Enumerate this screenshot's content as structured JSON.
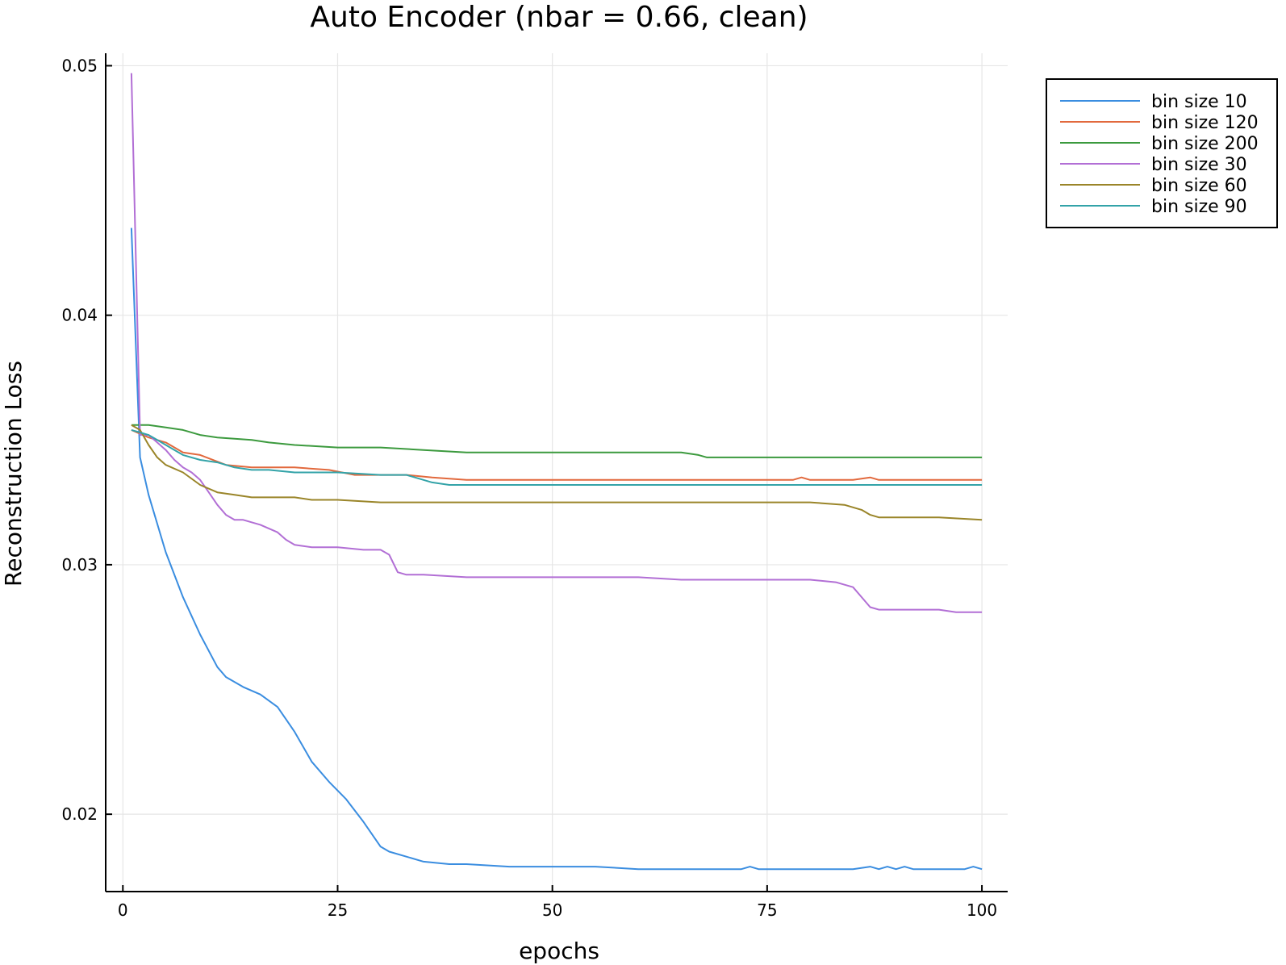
{
  "chart_data": {
    "type": "line",
    "title": "Auto Encoder (nbar = 0.66, clean)",
    "xlabel": "epochs",
    "ylabel": "Reconstruction Loss",
    "xlim": [
      -2,
      103
    ],
    "ylim": [
      0.0169,
      0.0505
    ],
    "xticks": [
      0,
      25,
      50,
      75,
      100
    ],
    "xtick_labels": [
      "0",
      "25",
      "50",
      "75",
      "100"
    ],
    "yticks": [
      0.02,
      0.03,
      0.04,
      0.05
    ],
    "ytick_labels": [
      "0.02",
      "0.03",
      "0.04",
      "0.05"
    ],
    "grid": true,
    "legend_position": "outer top-right",
    "series": [
      {
        "name": "bin size 10",
        "color": "#3a8de0",
        "points": [
          [
            1,
            0.0435
          ],
          [
            2,
            0.0343
          ],
          [
            3,
            0.0328
          ],
          [
            5,
            0.0305
          ],
          [
            7,
            0.0287
          ],
          [
            9,
            0.0272
          ],
          [
            11,
            0.0259
          ],
          [
            12,
            0.0255
          ],
          [
            14,
            0.0251
          ],
          [
            16,
            0.0248
          ],
          [
            18,
            0.0243
          ],
          [
            19,
            0.0238
          ],
          [
            20,
            0.0233
          ],
          [
            22,
            0.0221
          ],
          [
            24,
            0.0213
          ],
          [
            26,
            0.0206
          ],
          [
            28,
            0.0197
          ],
          [
            29,
            0.0192
          ],
          [
            30,
            0.0187
          ],
          [
            31,
            0.0185
          ],
          [
            33,
            0.0183
          ],
          [
            35,
            0.0181
          ],
          [
            38,
            0.018
          ],
          [
            40,
            0.018
          ],
          [
            45,
            0.0179
          ],
          [
            50,
            0.0179
          ],
          [
            55,
            0.0179
          ],
          [
            60,
            0.0178
          ],
          [
            65,
            0.0178
          ],
          [
            70,
            0.0178
          ],
          [
            72,
            0.0178
          ],
          [
            73,
            0.0179
          ],
          [
            74,
            0.0178
          ],
          [
            80,
            0.0178
          ],
          [
            85,
            0.0178
          ],
          [
            87,
            0.0179
          ],
          [
            88,
            0.0178
          ],
          [
            89,
            0.0179
          ],
          [
            90,
            0.0178
          ],
          [
            91,
            0.0179
          ],
          [
            92,
            0.0178
          ],
          [
            95,
            0.0178
          ],
          [
            98,
            0.0178
          ],
          [
            99,
            0.0179
          ],
          [
            100,
            0.0178
          ]
        ]
      },
      {
        "name": "bin size 120",
        "color": "#e2693d",
        "points": [
          [
            1,
            0.0354
          ],
          [
            3,
            0.0351
          ],
          [
            5,
            0.0349
          ],
          [
            7,
            0.0345
          ],
          [
            9,
            0.0344
          ],
          [
            12,
            0.034
          ],
          [
            15,
            0.0339
          ],
          [
            20,
            0.0339
          ],
          [
            24,
            0.0338
          ],
          [
            27,
            0.0336
          ],
          [
            30,
            0.0336
          ],
          [
            33,
            0.0336
          ],
          [
            36,
            0.0335
          ],
          [
            40,
            0.0334
          ],
          [
            45,
            0.0334
          ],
          [
            50,
            0.0334
          ],
          [
            55,
            0.0334
          ],
          [
            60,
            0.0334
          ],
          [
            65,
            0.0334
          ],
          [
            70,
            0.0334
          ],
          [
            75,
            0.0334
          ],
          [
            78,
            0.0334
          ],
          [
            79,
            0.0335
          ],
          [
            80,
            0.0334
          ],
          [
            85,
            0.0334
          ],
          [
            87,
            0.0335
          ],
          [
            88,
            0.0334
          ],
          [
            95,
            0.0334
          ],
          [
            100,
            0.0334
          ]
        ]
      },
      {
        "name": "bin size 200",
        "color": "#3c9a3e",
        "points": [
          [
            1,
            0.0356
          ],
          [
            3,
            0.0356
          ],
          [
            5,
            0.0355
          ],
          [
            7,
            0.0354
          ],
          [
            9,
            0.0352
          ],
          [
            11,
            0.0351
          ],
          [
            15,
            0.035
          ],
          [
            17,
            0.0349
          ],
          [
            20,
            0.0348
          ],
          [
            25,
            0.0347
          ],
          [
            30,
            0.0347
          ],
          [
            35,
            0.0346
          ],
          [
            40,
            0.0345
          ],
          [
            45,
            0.0345
          ],
          [
            50,
            0.0345
          ],
          [
            55,
            0.0345
          ],
          [
            60,
            0.0345
          ],
          [
            65,
            0.0345
          ],
          [
            67,
            0.0344
          ],
          [
            68,
            0.0343
          ],
          [
            70,
            0.0343
          ],
          [
            75,
            0.0343
          ],
          [
            80,
            0.0343
          ],
          [
            85,
            0.0343
          ],
          [
            90,
            0.0343
          ],
          [
            95,
            0.0343
          ],
          [
            100,
            0.0343
          ]
        ]
      },
      {
        "name": "bin size 30",
        "color": "#b26fd5",
        "points": [
          [
            1,
            0.0497
          ],
          [
            2,
            0.0352
          ],
          [
            3,
            0.0352
          ],
          [
            4,
            0.0349
          ],
          [
            5,
            0.0346
          ],
          [
            6,
            0.0342
          ],
          [
            7,
            0.0339
          ],
          [
            8,
            0.0337
          ],
          [
            9,
            0.0334
          ],
          [
            10,
            0.0329
          ],
          [
            11,
            0.0324
          ],
          [
            12,
            0.032
          ],
          [
            13,
            0.0318
          ],
          [
            14,
            0.0318
          ],
          [
            16,
            0.0316
          ],
          [
            18,
            0.0313
          ],
          [
            19,
            0.031
          ],
          [
            20,
            0.0308
          ],
          [
            22,
            0.0307
          ],
          [
            25,
            0.0307
          ],
          [
            28,
            0.0306
          ],
          [
            30,
            0.0306
          ],
          [
            31,
            0.0304
          ],
          [
            32,
            0.0297
          ],
          [
            33,
            0.0296
          ],
          [
            35,
            0.0296
          ],
          [
            40,
            0.0295
          ],
          [
            45,
            0.0295
          ],
          [
            50,
            0.0295
          ],
          [
            53,
            0.0295
          ],
          [
            54,
            0.0295
          ],
          [
            55,
            0.0295
          ],
          [
            60,
            0.0295
          ],
          [
            65,
            0.0294
          ],
          [
            70,
            0.0294
          ],
          [
            75,
            0.0294
          ],
          [
            80,
            0.0294
          ],
          [
            83,
            0.0293
          ],
          [
            85,
            0.0291
          ],
          [
            86,
            0.0287
          ],
          [
            87,
            0.0283
          ],
          [
            88,
            0.0282
          ],
          [
            90,
            0.0282
          ],
          [
            92,
            0.0282
          ],
          [
            95,
            0.0282
          ],
          [
            97,
            0.0281
          ],
          [
            98,
            0.0281
          ],
          [
            100,
            0.0281
          ]
        ]
      },
      {
        "name": "bin size 60",
        "color": "#9a8529",
        "points": [
          [
            1,
            0.0356
          ],
          [
            2,
            0.0354
          ],
          [
            3,
            0.0348
          ],
          [
            4,
            0.0343
          ],
          [
            5,
            0.034
          ],
          [
            7,
            0.0337
          ],
          [
            9,
            0.0332
          ],
          [
            11,
            0.0329
          ],
          [
            13,
            0.0328
          ],
          [
            15,
            0.0327
          ],
          [
            18,
            0.0327
          ],
          [
            20,
            0.0327
          ],
          [
            22,
            0.0326
          ],
          [
            25,
            0.0326
          ],
          [
            30,
            0.0325
          ],
          [
            35,
            0.0325
          ],
          [
            40,
            0.0325
          ],
          [
            45,
            0.0325
          ],
          [
            50,
            0.0325
          ],
          [
            55,
            0.0325
          ],
          [
            60,
            0.0325
          ],
          [
            65,
            0.0325
          ],
          [
            70,
            0.0325
          ],
          [
            75,
            0.0325
          ],
          [
            80,
            0.0325
          ],
          [
            84,
            0.0324
          ],
          [
            85,
            0.0323
          ],
          [
            86,
            0.0322
          ],
          [
            87,
            0.032
          ],
          [
            88,
            0.0319
          ],
          [
            90,
            0.0319
          ],
          [
            95,
            0.0319
          ],
          [
            100,
            0.0318
          ]
        ]
      },
      {
        "name": "bin size 90",
        "color": "#33a3a8",
        "points": [
          [
            1,
            0.0354
          ],
          [
            2,
            0.0353
          ],
          [
            3,
            0.0352
          ],
          [
            4,
            0.035
          ],
          [
            5,
            0.0348
          ],
          [
            6,
            0.0346
          ],
          [
            7,
            0.0344
          ],
          [
            9,
            0.0342
          ],
          [
            11,
            0.0341
          ],
          [
            12,
            0.034
          ],
          [
            13,
            0.0339
          ],
          [
            15,
            0.0338
          ],
          [
            17,
            0.0338
          ],
          [
            20,
            0.0337
          ],
          [
            25,
            0.0337
          ],
          [
            30,
            0.0336
          ],
          [
            33,
            0.0336
          ],
          [
            34,
            0.0335
          ],
          [
            36,
            0.0333
          ],
          [
            38,
            0.0332
          ],
          [
            40,
            0.0332
          ],
          [
            45,
            0.0332
          ],
          [
            50,
            0.0332
          ],
          [
            55,
            0.0332
          ],
          [
            60,
            0.0332
          ],
          [
            65,
            0.0332
          ],
          [
            70,
            0.0332
          ],
          [
            75,
            0.0332
          ],
          [
            80,
            0.0332
          ],
          [
            85,
            0.0332
          ],
          [
            88,
            0.0332
          ],
          [
            89,
            0.0332
          ],
          [
            90,
            0.0332
          ],
          [
            95,
            0.0332
          ],
          [
            100,
            0.0332
          ]
        ]
      }
    ]
  }
}
